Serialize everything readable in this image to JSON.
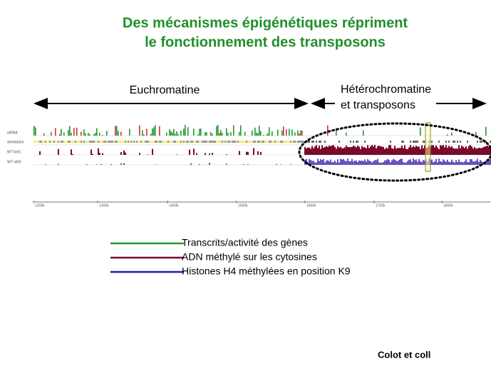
{
  "title": {
    "line1": "Des mécanismes épigénétiques répriment",
    "line2": "le fonctionnement des transposons"
  },
  "regions": {
    "euchromatin": "Euchromatine",
    "heterochromatin_line1": "Hétérochromatine",
    "heterochromatin_line2": "et transposons"
  },
  "tracks": [
    "mRNA",
    "annotation",
    "WT 5mC",
    "WT mK9"
  ],
  "axis_ticks": [
    "1200k",
    "1300k",
    "1400k",
    "1500k",
    "1600k",
    "1700k",
    "1800k"
  ],
  "legend": [
    {
      "label": "Transcrits/activité des gènes",
      "color": "#1f9a2e"
    },
    {
      "label": "ADN méthylé sur les cytosines",
      "color": "#7a0a2c"
    },
    {
      "label": "Histones H4 méthylées en position K9",
      "color": "#1c1ca8"
    }
  ],
  "credit": "Colot et coll"
}
